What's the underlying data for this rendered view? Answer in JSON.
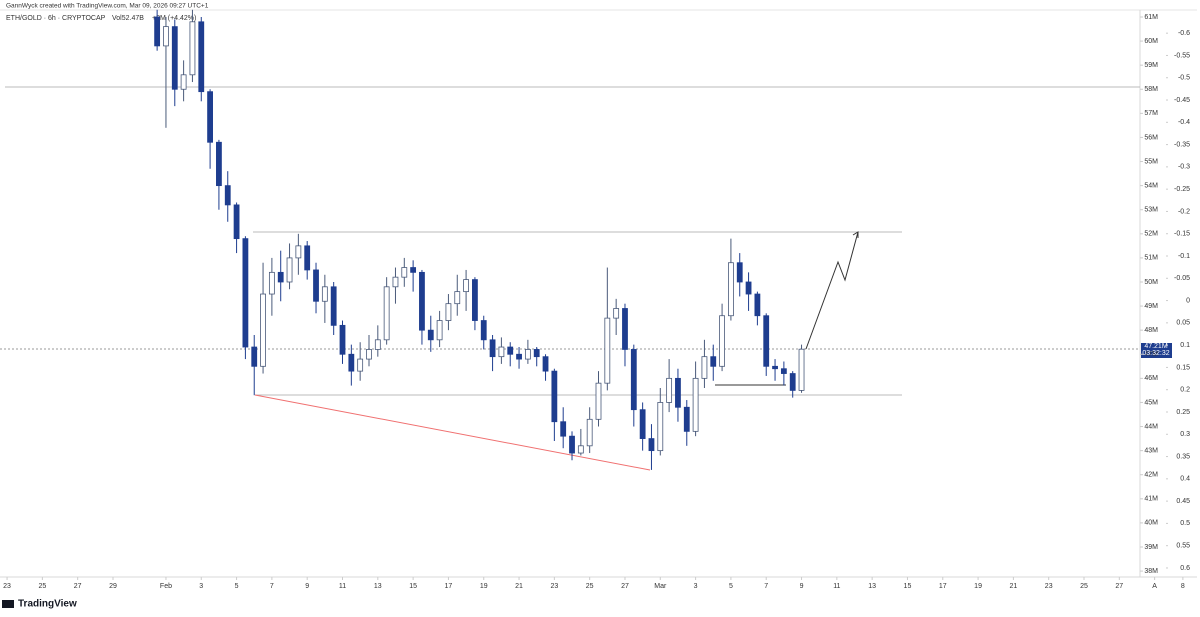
{
  "attribution": "GannWyck created with TradingView.com, Mar 09, 2026 09:27 UTC+1",
  "brand": "TradingView",
  "chart_data": {
    "type": "candlestick",
    "title": "ETH/GOLD · 6h · CRYPTOCAP",
    "annotations": [
      "Vol52.47B",
      "+2M (+4.42%)"
    ],
    "up_color": "#ffffff",
    "up_border": "#4a5a7a",
    "down_color": "#1e3d8f",
    "x": [
      31.5,
      32,
      32.5,
      33,
      33.5,
      34,
      34.5,
      35,
      35.5,
      36,
      36.5,
      37,
      37.5,
      38,
      38.5,
      39,
      39.5,
      40,
      40.5,
      41,
      41.5,
      42,
      42.5,
      43,
      43.5,
      44,
      44.5,
      45,
      45.5,
      46,
      46.5,
      47,
      47.5,
      48,
      48.5,
      49,
      49.5,
      50,
      50.5,
      51,
      51.5,
      52,
      52.5,
      53,
      53.5,
      54,
      54.5,
      55,
      55.5,
      56,
      56.5,
      57,
      57.5,
      58,
      58.5,
      59,
      59.5,
      60,
      60.5,
      61,
      61.5,
      62,
      62.5,
      63,
      63.5,
      64,
      64.5,
      65,
      65.5,
      66,
      66.5,
      67,
      67.5,
      68
    ],
    "open": [
      61.0,
      59.8,
      60.6,
      58.0,
      58.6,
      60.8,
      57.9,
      55.8,
      54.0,
      53.2,
      51.8,
      47.3,
      46.5,
      49.5,
      50.4,
      50.0,
      51.0,
      51.5,
      50.5,
      49.2,
      49.8,
      48.2,
      47.0,
      46.3,
      46.8,
      47.2,
      47.6,
      49.8,
      50.2,
      50.6,
      50.4,
      48.0,
      47.6,
      48.4,
      49.1,
      49.6,
      50.1,
      48.4,
      47.6,
      46.9,
      47.3,
      47.0,
      46.8,
      47.2,
      46.9,
      46.3,
      44.2,
      43.6,
      42.9,
      43.2,
      44.3,
      45.8,
      48.5,
      48.9,
      47.2,
      44.7,
      43.5,
      43.0,
      45.0,
      46.0,
      44.8,
      43.8,
      46.0,
      46.9,
      46.5,
      48.6,
      50.8,
      50.0,
      49.5,
      48.6,
      46.5,
      46.4,
      46.2,
      45.5
    ],
    "high": [
      61.3,
      61.0,
      60.9,
      59.2,
      61.3,
      61.0,
      58.0,
      55.9,
      54.6,
      53.3,
      51.9,
      47.8,
      50.8,
      51.0,
      51.3,
      51.6,
      52.0,
      51.7,
      50.8,
      50.3,
      50.0,
      48.4,
      47.4,
      47.5,
      47.8,
      48.2,
      50.2,
      50.6,
      51.0,
      50.9,
      50.5,
      48.6,
      48.8,
      49.5,
      50.3,
      50.5,
      50.2,
      48.6,
      47.8,
      47.7,
      47.5,
      47.3,
      47.6,
      47.3,
      47.0,
      46.4,
      44.8,
      43.8,
      43.9,
      44.8,
      46.3,
      50.6,
      49.3,
      49.1,
      47.4,
      45.0,
      44.1,
      45.6,
      46.8,
      46.4,
      45.1,
      46.7,
      47.6,
      47.4,
      49.1,
      51.8,
      51.2,
      50.4,
      49.6,
      48.7,
      46.8,
      46.7,
      46.3,
      47.4
    ],
    "low": [
      59.6,
      56.4,
      57.3,
      57.5,
      58.3,
      57.5,
      54.7,
      53.0,
      52.5,
      51.2,
      46.8,
      45.3,
      46.2,
      48.6,
      49.2,
      49.7,
      50.3,
      50.1,
      48.7,
      48.3,
      47.8,
      46.6,
      45.7,
      45.9,
      46.5,
      46.9,
      47.4,
      49.1,
      49.8,
      49.6,
      47.4,
      47.1,
      47.3,
      48.0,
      48.6,
      48.8,
      48.0,
      47.2,
      46.3,
      46.6,
      46.5,
      46.4,
      46.6,
      46.5,
      45.9,
      43.4,
      43.1,
      42.6,
      42.8,
      42.9,
      44.0,
      45.5,
      47.8,
      46.5,
      44.0,
      43.0,
      42.2,
      42.8,
      44.6,
      44.2,
      43.2,
      43.6,
      45.6,
      45.9,
      46.3,
      48.4,
      49.4,
      48.8,
      48.2,
      46.1,
      45.9,
      45.7,
      45.2,
      45.4
    ],
    "close": [
      59.8,
      60.6,
      58.0,
      58.6,
      60.8,
      57.9,
      55.8,
      54.0,
      53.2,
      51.8,
      47.3,
      46.5,
      49.5,
      50.4,
      50.0,
      51.0,
      51.5,
      50.5,
      49.2,
      49.8,
      48.2,
      47.0,
      46.3,
      46.8,
      47.2,
      47.6,
      49.8,
      50.2,
      50.6,
      50.4,
      48.0,
      47.6,
      48.4,
      49.1,
      49.6,
      50.1,
      48.4,
      47.6,
      46.9,
      47.3,
      47.0,
      46.8,
      47.2,
      46.9,
      46.3,
      44.2,
      43.6,
      42.9,
      43.2,
      44.3,
      45.8,
      48.5,
      48.9,
      47.2,
      44.7,
      43.5,
      43.0,
      45.0,
      46.0,
      44.8,
      43.8,
      46.0,
      46.9,
      46.5,
      48.6,
      50.8,
      50.0,
      49.5,
      48.6,
      46.5,
      46.4,
      46.2,
      45.5,
      47.21
    ],
    "last_price": {
      "value": 47.21,
      "label": "47.21M"
    },
    "countdown": "03:32:32",
    "xlim": [
      22.6,
      90.4
    ],
    "xticks": [
      {
        "value": 23,
        "label": "23"
      },
      {
        "value": 25,
        "label": "25"
      },
      {
        "value": 27,
        "label": "27"
      },
      {
        "value": 29,
        "label": "29"
      },
      {
        "value": 32,
        "label": "Feb"
      },
      {
        "value": 34,
        "label": "3"
      },
      {
        "value": 36,
        "label": "5"
      },
      {
        "value": 38,
        "label": "7"
      },
      {
        "value": 40,
        "label": "9"
      },
      {
        "value": 42,
        "label": "11"
      },
      {
        "value": 44,
        "label": "13"
      },
      {
        "value": 46,
        "label": "15"
      },
      {
        "value": 48,
        "label": "17"
      },
      {
        "value": 50,
        "label": "19"
      },
      {
        "value": 52,
        "label": "21"
      },
      {
        "value": 54,
        "label": "23"
      },
      {
        "value": 56,
        "label": "25"
      },
      {
        "value": 58,
        "label": "27"
      },
      {
        "value": 60,
        "label": "Mar"
      },
      {
        "value": 62,
        "label": "3"
      },
      {
        "value": 64,
        "label": "5"
      },
      {
        "value": 66,
        "label": "7"
      },
      {
        "value": 68,
        "label": "9"
      },
      {
        "value": 70,
        "label": "11"
      },
      {
        "value": 72,
        "label": "13"
      },
      {
        "value": 74,
        "label": "15"
      },
      {
        "value": 76,
        "label": "17"
      },
      {
        "value": 78,
        "label": "19"
      },
      {
        "value": 80,
        "label": "21"
      },
      {
        "value": 82,
        "label": "23"
      },
      {
        "value": 84,
        "label": "25"
      },
      {
        "value": 86,
        "label": "27"
      },
      {
        "value": 88,
        "label": "A"
      },
      {
        "value": 89.6,
        "label": "8"
      }
    ],
    "ylim": [
      37.63,
      61.29
    ],
    "yticks": [
      {
        "value": 61,
        "label": "61M"
      },
      {
        "value": 60,
        "label": "60M"
      },
      {
        "value": 59,
        "label": "59M"
      },
      {
        "value": 58,
        "label": "58M"
      },
      {
        "value": 57,
        "label": "57M"
      },
      {
        "value": 56,
        "label": "56M"
      },
      {
        "value": 55,
        "label": "55M"
      },
      {
        "value": 54,
        "label": "54M"
      },
      {
        "value": 53,
        "label": "53M"
      },
      {
        "value": 52,
        "label": "52M"
      },
      {
        "value": 51,
        "label": "51M"
      },
      {
        "value": 50,
        "label": "50M"
      },
      {
        "value": 49,
        "label": "49M"
      },
      {
        "value": 48,
        "label": "48M"
      },
      {
        "value": 47,
        "label": "47M"
      },
      {
        "value": 46,
        "label": "46M"
      },
      {
        "value": 45,
        "label": "45M"
      },
      {
        "value": 44,
        "label": "44M"
      },
      {
        "value": 43,
        "label": "43M"
      },
      {
        "value": 42,
        "label": "42M"
      },
      {
        "value": 41,
        "label": "41M"
      },
      {
        "value": 40,
        "label": "40M"
      },
      {
        "value": 39,
        "label": "39M"
      },
      {
        "value": 38,
        "label": "38M"
      }
    ],
    "y2lim": [
      0.627,
      -0.652
    ],
    "y2ticks": [
      -0.6,
      -0.55,
      -0.5,
      -0.45,
      -0.4,
      -0.35,
      -0.3,
      -0.25,
      -0.2,
      -0.15,
      -0.1,
      -0.05,
      0,
      0.05,
      0.1,
      0.15,
      0.2,
      0.25,
      0.3,
      0.35,
      0.4,
      0.45,
      0.5,
      0.55,
      0.6
    ]
  }
}
